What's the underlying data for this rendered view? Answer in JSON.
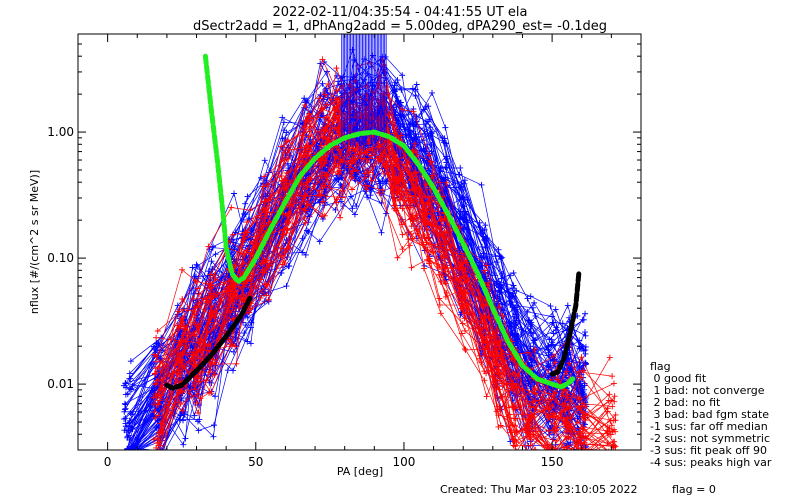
{
  "chart_data": {
    "type": "line",
    "title_line1": "2022-02-11/04:35:54 - 04:41:55 UT ela",
    "title_line2": "dSectr2add = 1, dPhAng2add = 5.00deg, dPA290_est=  -0.1deg",
    "xlabel": "PA [deg]",
    "ylabel": "nflux [#/(cm^2 s sr MeV)]",
    "xlim": [
      -10,
      180
    ],
    "ylim": [
      0.003,
      6.0
    ],
    "yscale": "log",
    "xticks": [
      {
        "v": 0,
        "label": "0"
      },
      {
        "v": 50,
        "label": "50"
      },
      {
        "v": 100,
        "label": "100"
      },
      {
        "v": 150,
        "label": "150"
      }
    ],
    "yticks": [
      {
        "v": 0.01,
        "label": "0.01"
      },
      {
        "v": 0.1,
        "label": "0.10"
      },
      {
        "v": 1.0,
        "label": "1.00"
      }
    ],
    "footer": "Created: Thu Mar 03 23:10:05 2022",
    "flag_text": "flag = 0",
    "colors": {
      "blue": "#0000ff",
      "red": "#ff0000",
      "green": "#22ee22",
      "black": "#000000"
    },
    "legend": {
      "title": "flag",
      "items": [
        " 0 good fit",
        " 1 bad: not converge",
        " 2 bad: no fit",
        " 3 bad: bad fgm state",
        "-1 sus: far off median",
        "-2 sus: not symmetric",
        "-3 sus: fit peak off 90",
        "-4 sus: peaks high var"
      ]
    },
    "series": [
      {
        "color": "green",
        "style": "dashed-thick",
        "x": [
          33,
          35,
          37,
          39,
          40,
          42,
          44,
          46,
          50,
          55,
          60,
          65,
          70,
          75,
          80,
          85,
          90,
          95,
          100,
          105,
          110,
          115,
          120,
          125,
          130,
          135,
          140,
          145,
          150,
          153,
          155,
          157
        ],
        "y": [
          4.0,
          1.5,
          0.6,
          0.22,
          0.12,
          0.075,
          0.065,
          0.07,
          0.1,
          0.17,
          0.28,
          0.45,
          0.62,
          0.78,
          0.9,
          0.97,
          1.0,
          0.92,
          0.78,
          0.55,
          0.36,
          0.22,
          0.13,
          0.075,
          0.04,
          0.022,
          0.014,
          0.011,
          0.01,
          0.0095,
          0.01,
          0.011
        ]
      },
      {
        "color": "black",
        "style": "dashed-thick",
        "x": [
          20,
          22,
          25,
          28,
          31,
          35,
          40,
          45,
          48
        ],
        "y": [
          0.0098,
          0.0093,
          0.0098,
          0.0115,
          0.0135,
          0.017,
          0.024,
          0.035,
          0.048
        ]
      },
      {
        "color": "black",
        "style": "dashed-thick",
        "x": [
          150,
          152,
          154,
          156,
          158,
          159
        ],
        "y": [
          0.012,
          0.0125,
          0.016,
          0.025,
          0.042,
          0.075
        ]
      }
    ],
    "bundles": [
      {
        "color": "blue",
        "x": [
          7,
          17,
          25,
          30,
          35,
          42,
          47,
          53,
          60,
          67,
          73,
          78,
          83,
          88,
          93,
          98,
          103,
          108,
          113,
          120,
          127,
          132,
          137,
          143,
          150,
          155,
          160
        ]
      },
      {
        "color": "red",
        "x": [
          17,
          25,
          30,
          35,
          42,
          47,
          53,
          60,
          67,
          73,
          78,
          83,
          88,
          93,
          98,
          103,
          108,
          113,
          120,
          127,
          132,
          137,
          143,
          150,
          155,
          160,
          170
        ]
      }
    ],
    "saturated_x_range": [
      79,
      94
    ]
  }
}
